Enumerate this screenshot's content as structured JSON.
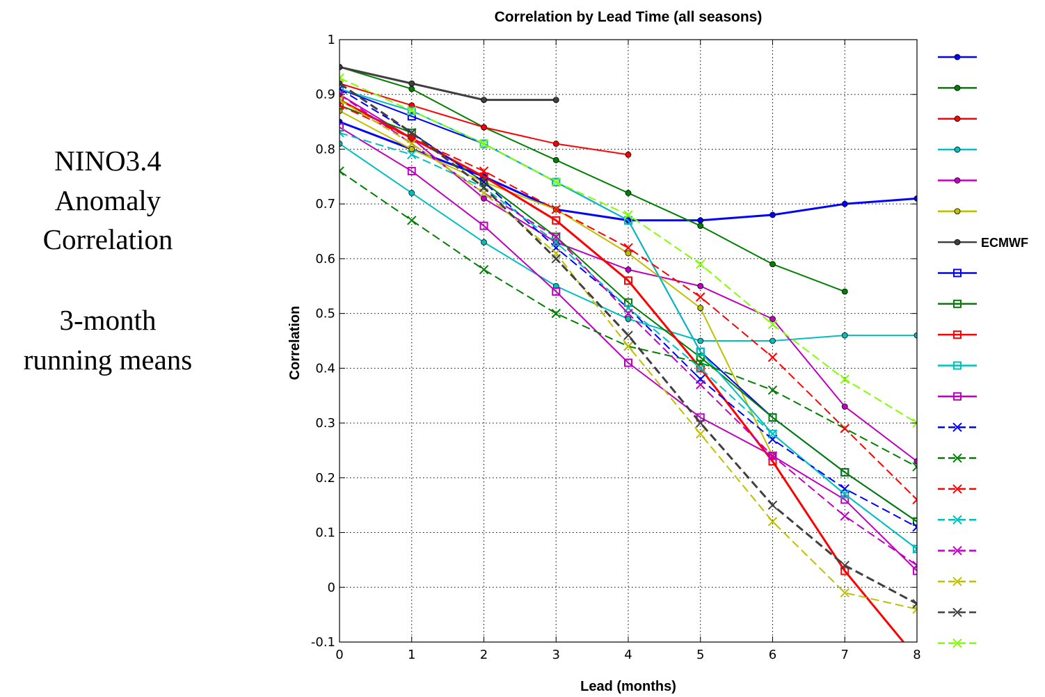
{
  "side_panel": {
    "line1": "NINO3.4",
    "line2": "Anomaly",
    "line3": "Correlation",
    "line4": "3-month",
    "line5": "running means"
  },
  "chart_data": {
    "type": "line",
    "title": "Correlation by Lead Time (all seasons)",
    "xlabel": "Lead (months)",
    "ylabel": "Correlation",
    "xlim": [
      0,
      8
    ],
    "ylim": [
      -0.1,
      1
    ],
    "xticks": [
      "0",
      "1",
      "2",
      "3",
      "4",
      "5",
      "6",
      "7",
      "8"
    ],
    "yticks": [
      "-0.1",
      "0",
      "0.1",
      "0.2",
      "0.3",
      "0.4",
      "0.5",
      "0.6",
      "0.7",
      "0.8",
      "0.9",
      "1"
    ],
    "grid": true,
    "legend_position": "right",
    "series": [
      {
        "label": "",
        "color": "#0000ff",
        "marker": "dot",
        "dash": "solid",
        "width": 3,
        "x": [
          0,
          1,
          2,
          3,
          4,
          5,
          6,
          7,
          8
        ],
        "y": [
          0.85,
          0.8,
          0.75,
          0.69,
          0.67,
          0.67,
          0.68,
          0.7,
          0.71
        ]
      },
      {
        "label": "",
        "color": "#008000",
        "marker": "dot",
        "dash": "solid",
        "width": 2,
        "x": [
          0,
          1,
          2,
          3,
          4,
          5,
          6,
          7
        ],
        "y": [
          0.95,
          0.91,
          0.84,
          0.78,
          0.72,
          0.66,
          0.59,
          0.54
        ]
      },
      {
        "label": "",
        "color": "#ff0000",
        "marker": "dot",
        "dash": "solid",
        "width": 2,
        "x": [
          0,
          1,
          2,
          3,
          4
        ],
        "y": [
          0.92,
          0.88,
          0.84,
          0.81,
          0.79
        ]
      },
      {
        "label": "",
        "color": "#00bfbf",
        "marker": "dot",
        "dash": "solid",
        "width": 2,
        "x": [
          0,
          1,
          2,
          3,
          4,
          5,
          6,
          7,
          8
        ],
        "y": [
          0.81,
          0.72,
          0.63,
          0.55,
          0.49,
          0.45,
          0.45,
          0.46,
          0.46
        ]
      },
      {
        "label": "",
        "color": "#bf00bf",
        "marker": "dot",
        "dash": "solid",
        "width": 2,
        "x": [
          0,
          1,
          2,
          3,
          4,
          5,
          6,
          7,
          8
        ],
        "y": [
          0.9,
          0.82,
          0.71,
          0.63,
          0.58,
          0.55,
          0.49,
          0.33,
          0.23
        ]
      },
      {
        "label": "",
        "color": "#bfbf00",
        "marker": "dot",
        "dash": "solid",
        "width": 2,
        "x": [
          0,
          1,
          2,
          3,
          4,
          5,
          6
        ],
        "y": [
          0.87,
          0.8,
          0.74,
          0.69,
          0.61,
          0.51,
          0.24
        ]
      },
      {
        "label": "ECMWF",
        "color": "#404040",
        "marker": "dot",
        "dash": "solid",
        "width": 3,
        "x": [
          0,
          1,
          2,
          3
        ],
        "y": [
          0.95,
          0.92,
          0.89,
          0.89
        ]
      },
      {
        "label": "",
        "color": "#0000ff",
        "marker": "square",
        "dash": "solid",
        "width": 2,
        "x": [
          0,
          1,
          2,
          3,
          4,
          5,
          6,
          7,
          8
        ],
        "y": [
          0.91,
          0.86,
          0.81,
          0.74,
          0.67,
          0.43,
          0.31,
          0.21,
          0.12
        ]
      },
      {
        "label": "",
        "color": "#008000",
        "marker": "square",
        "dash": "solid",
        "width": 2,
        "x": [
          0,
          1,
          2,
          3,
          4,
          5,
          6,
          7,
          8
        ],
        "y": [
          0.88,
          0.83,
          0.74,
          0.64,
          0.52,
          0.42,
          0.31,
          0.21,
          0.12
        ]
      },
      {
        "label": "",
        "color": "#ff0000",
        "marker": "square",
        "dash": "solid",
        "width": 3,
        "x": [
          0,
          1,
          2,
          3,
          4,
          5,
          6,
          7,
          8
        ],
        "y": [
          0.89,
          0.82,
          0.75,
          0.67,
          0.56,
          0.4,
          0.23,
          0.03,
          -0.13
        ]
      },
      {
        "label": "",
        "color": "#00bfbf",
        "marker": "square",
        "dash": "solid",
        "width": 2,
        "x": [
          0,
          1,
          2,
          3,
          4,
          5,
          6,
          7,
          8
        ],
        "y": [
          0.91,
          0.87,
          0.81,
          0.74,
          0.67,
          0.43,
          0.28,
          0.17,
          0.07
        ]
      },
      {
        "label": "",
        "color": "#bf00bf",
        "marker": "square",
        "dash": "solid",
        "width": 2,
        "x": [
          0,
          1,
          2,
          3,
          4,
          5,
          6,
          7,
          8
        ],
        "y": [
          0.84,
          0.76,
          0.66,
          0.54,
          0.41,
          0.31,
          0.24,
          0.16,
          0.03
        ]
      },
      {
        "label": "",
        "color": "#0000ff",
        "marker": "x",
        "dash": "dashed",
        "width": 2,
        "x": [
          0,
          1,
          2,
          3,
          4,
          5,
          6,
          7,
          8
        ],
        "y": [
          0.91,
          0.83,
          0.74,
          0.62,
          0.51,
          0.38,
          0.27,
          0.18,
          0.11
        ]
      },
      {
        "label": "",
        "color": "#008000",
        "marker": "x",
        "dash": "dashed",
        "width": 2,
        "x": [
          0,
          1,
          2,
          3,
          4,
          5,
          6,
          7,
          8
        ],
        "y": [
          0.76,
          0.67,
          0.58,
          0.5,
          0.44,
          0.41,
          0.36,
          0.29,
          0.22
        ]
      },
      {
        "label": "",
        "color": "#ff0000",
        "marker": "x",
        "dash": "dashed",
        "width": 2,
        "x": [
          0,
          1,
          2,
          3,
          4,
          5,
          6,
          7,
          8
        ],
        "y": [
          0.88,
          0.82,
          0.76,
          0.69,
          0.62,
          0.53,
          0.42,
          0.29,
          0.16
        ]
      },
      {
        "label": "",
        "color": "#00bfbf",
        "marker": "x",
        "dash": "dashed",
        "width": 2,
        "x": [
          0,
          1,
          2,
          3,
          4,
          5,
          6,
          7,
          8
        ],
        "y": [
          0.83,
          0.79,
          0.73,
          0.63,
          0.51,
          0.4,
          0.28,
          0.17,
          0.07
        ]
      },
      {
        "label": "",
        "color": "#bf00bf",
        "marker": "x",
        "dash": "dashed",
        "width": 2,
        "x": [
          0,
          1,
          2,
          3,
          4,
          5,
          6,
          7,
          8
        ],
        "y": [
          0.9,
          0.81,
          0.72,
          0.64,
          0.5,
          0.37,
          0.24,
          0.13,
          0.04
        ]
      },
      {
        "label": "",
        "color": "#bfbf00",
        "marker": "x",
        "dash": "dashed",
        "width": 2,
        "x": [
          0,
          1,
          2,
          3,
          4,
          5,
          6,
          7,
          8
        ],
        "y": [
          0.89,
          0.81,
          0.72,
          0.61,
          0.44,
          0.28,
          0.12,
          -0.01,
          -0.04
        ]
      },
      {
        "label": "",
        "color": "#404040",
        "marker": "x",
        "dash": "dashed",
        "width": 3,
        "x": [
          0,
          1,
          2,
          3,
          4,
          5,
          6,
          7,
          8
        ],
        "y": [
          0.92,
          0.83,
          0.73,
          0.6,
          0.46,
          0.3,
          0.15,
          0.04,
          -0.03
        ]
      },
      {
        "label": "",
        "color": "#80ff00",
        "marker": "x",
        "dash": "dashed",
        "width": 2,
        "x": [
          0,
          1,
          2,
          3,
          4,
          5,
          6,
          7,
          8
        ],
        "y": [
          0.93,
          0.87,
          0.81,
          0.74,
          0.68,
          0.59,
          0.48,
          0.38,
          0.3
        ]
      }
    ]
  }
}
